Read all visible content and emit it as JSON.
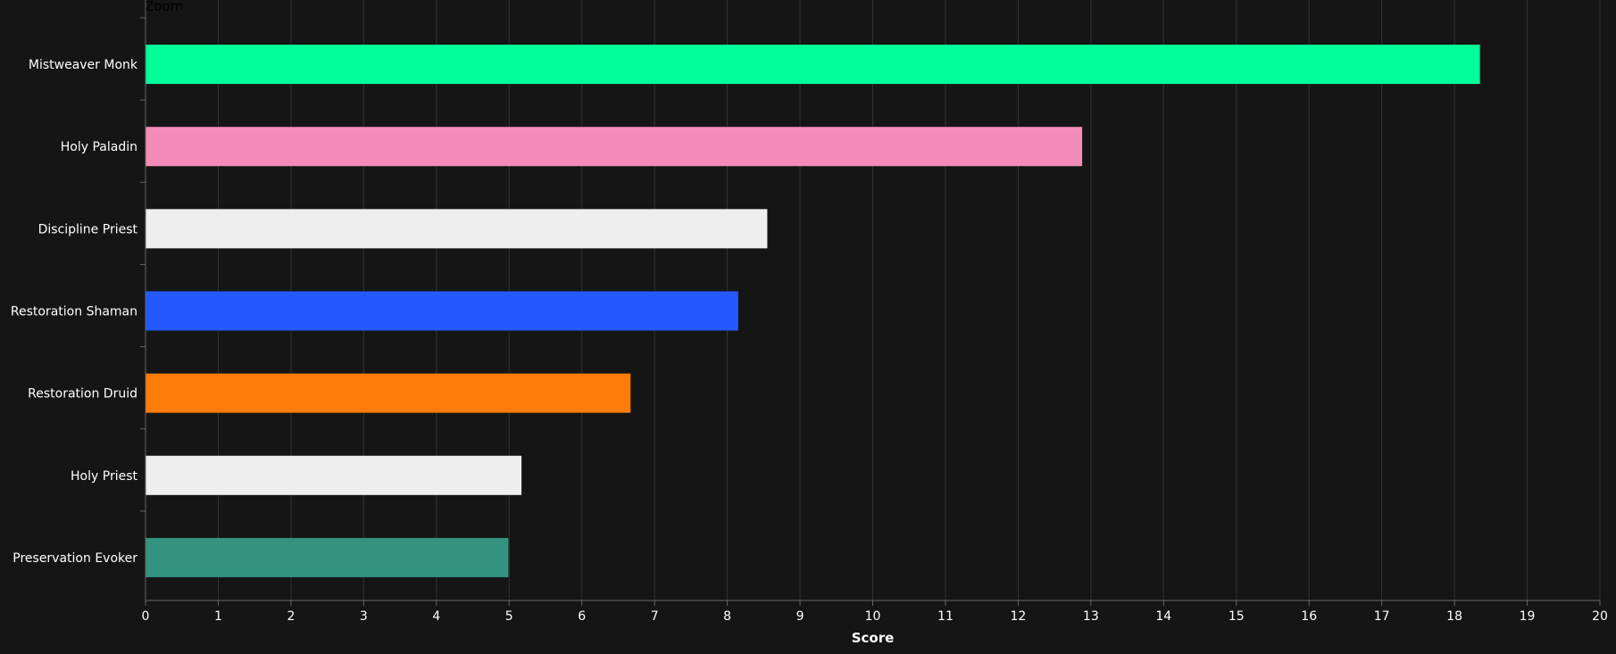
{
  "zoom_label": "Zoom",
  "colors": {
    "background": "#151515",
    "grid": "#333333",
    "axis": "#666666",
    "text": "#ffffff"
  },
  "chart_data": {
    "type": "bar",
    "orientation": "horizontal",
    "xlabel": "Score",
    "ylabel": "",
    "xlim": [
      0,
      20
    ],
    "xticks": [
      0,
      1,
      2,
      3,
      4,
      5,
      6,
      7,
      8,
      9,
      10,
      11,
      12,
      13,
      14,
      15,
      16,
      17,
      18,
      19,
      20
    ],
    "grid": true,
    "categories": [
      "Mistweaver Monk",
      "Holy Paladin",
      "Discipline Priest",
      "Restoration Shaman",
      "Restoration Druid",
      "Holy Priest",
      "Preservation Evoker"
    ],
    "values": [
      18.35,
      12.88,
      8.55,
      8.15,
      6.67,
      5.17,
      4.99
    ],
    "bar_colors": [
      "#00ff98",
      "#f48cba",
      "#eeeeee",
      "#2459ff",
      "#ff7c0a",
      "#eeeeee",
      "#33937f"
    ]
  }
}
